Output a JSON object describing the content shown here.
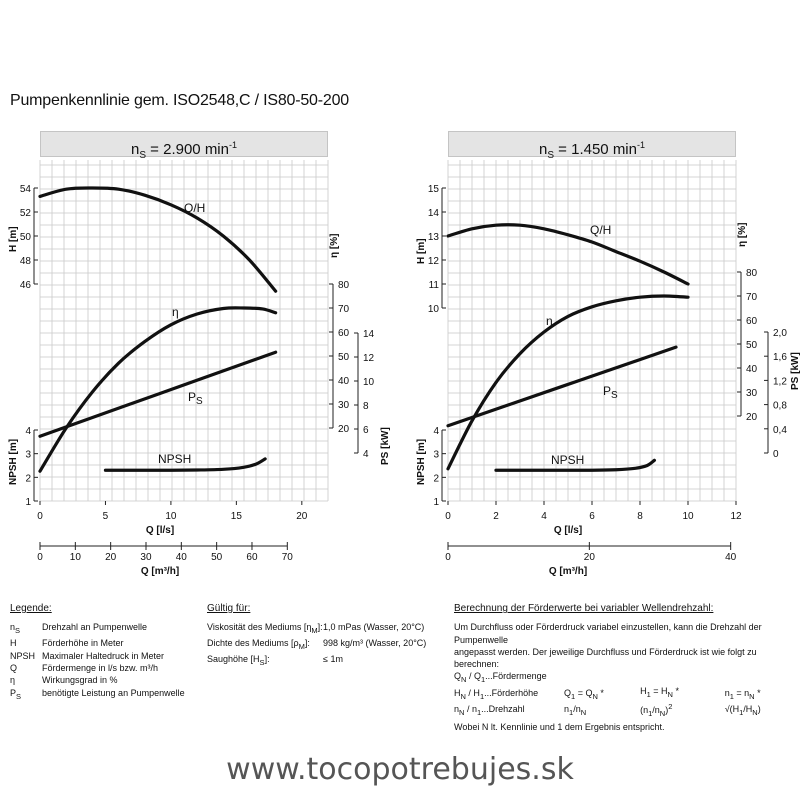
{
  "title": "Pumpenkennlinie gem. ISO2548,C / IS80-50-200",
  "chart_data": [
    {
      "type": "line",
      "panel_title": "n_S = 2.900 min⁻¹",
      "x_label": "Q [l/s]",
      "x_ticks": [
        0,
        5,
        10,
        15,
        20
      ],
      "x2_label": "Q [m³/h]",
      "x2_ticks": [
        0,
        10,
        20,
        30,
        40,
        50,
        60,
        70
      ],
      "axes": {
        "H": {
          "label": "H [m]",
          "ticks": [
            46,
            48,
            50,
            52,
            54
          ],
          "range": [
            46,
            54
          ]
        },
        "eta": {
          "label": "η [%]",
          "ticks": [
            20,
            30,
            40,
            50,
            60,
            70,
            80
          ],
          "range": [
            20,
            80
          ]
        },
        "PS": {
          "label": "PS [kW]",
          "ticks": [
            4,
            6,
            8,
            10,
            12,
            14
          ],
          "range": [
            4,
            14
          ]
        },
        "NPSH": {
          "label": "NPSH [m]",
          "ticks": [
            1,
            2,
            3,
            4
          ],
          "range": [
            1,
            4
          ]
        }
      },
      "series": [
        {
          "name": "Q/H",
          "axis": "H",
          "x": [
            0,
            2,
            4,
            6,
            8,
            10,
            12,
            14,
            16,
            18
          ],
          "y": [
            53.3,
            53.9,
            54.0,
            53.9,
            53.4,
            52.6,
            51.5,
            50.0,
            48.0,
            45.4
          ]
        },
        {
          "name": "η",
          "axis": "eta",
          "x": [
            0,
            2,
            4,
            6,
            8,
            10,
            12,
            14,
            15.6,
            17,
            18
          ],
          "y": [
            2,
            20,
            35,
            47,
            56,
            63,
            67.5,
            69.8,
            70,
            69.6,
            68
          ]
        },
        {
          "name": "PS",
          "axis": "PS",
          "x": [
            0,
            18
          ],
          "y": [
            5.4,
            12.4
          ]
        },
        {
          "name": "NPSH",
          "axis": "NPSH",
          "x": [
            5,
            8,
            10,
            12,
            14,
            15.5,
            16.5,
            17.2
          ],
          "y": [
            2.3,
            2.3,
            2.3,
            2.31,
            2.34,
            2.42,
            2.56,
            2.78
          ]
        }
      ],
      "curve_labels": {
        "QH": "Q/H",
        "eta": "η",
        "PS": "P",
        "PS_sub": "S",
        "NPSH": "NPSH"
      }
    },
    {
      "type": "line",
      "panel_title": "n_S = 1.450 min⁻¹",
      "x_label": "Q [l/s]",
      "x_ticks": [
        0,
        2,
        4,
        6,
        8,
        10,
        12
      ],
      "x2_label": "Q [m³/h]",
      "x2_ticks": [
        0,
        20,
        40
      ],
      "axes": {
        "H": {
          "label": "H [m]",
          "ticks": [
            10,
            11,
            12,
            13,
            14,
            15
          ],
          "range": [
            10,
            15
          ]
        },
        "eta": {
          "label": "η [%]",
          "ticks": [
            20,
            30,
            40,
            50,
            60,
            70,
            80
          ],
          "range": [
            20,
            80
          ]
        },
        "PS": {
          "label": "PS [kW]",
          "ticks": [
            0,
            0.4,
            0.8,
            1.2,
            1.6,
            2.0
          ],
          "tick_labels": [
            "0",
            "0,4",
            "0,8",
            "1,2",
            "1,6",
            "2,0"
          ],
          "range": [
            0,
            2
          ]
        },
        "NPSH": {
          "label": "NPSH [m]",
          "ticks": [
            1,
            2,
            3,
            4
          ],
          "range": [
            1,
            4
          ]
        }
      },
      "series": [
        {
          "name": "Q/H",
          "axis": "H",
          "x": [
            0,
            1,
            2,
            3,
            4,
            5,
            6,
            7,
            8,
            9,
            10
          ],
          "y": [
            13.0,
            13.3,
            13.45,
            13.45,
            13.3,
            13.05,
            12.75,
            12.35,
            11.95,
            11.5,
            11.0
          ]
        },
        {
          "name": "η",
          "axis": "eta",
          "x": [
            0,
            1,
            2,
            3,
            4,
            5,
            6,
            7,
            8,
            9,
            10
          ],
          "y": [
            -2,
            18,
            34,
            46,
            55,
            61.5,
            65.5,
            68,
            69.5,
            70,
            69.5
          ]
        },
        {
          "name": "PS",
          "axis": "PS",
          "x": [
            0,
            9.5
          ],
          "y": [
            0.45,
            1.75
          ]
        },
        {
          "name": "NPSH",
          "axis": "NPSH",
          "x": [
            2,
            4,
            6,
            7,
            7.8,
            8.3,
            8.6
          ],
          "y": [
            2.3,
            2.3,
            2.3,
            2.32,
            2.38,
            2.5,
            2.72
          ]
        }
      ],
      "curve_labels": {
        "QH": "Q/H",
        "eta": "η",
        "PS": "P",
        "PS_sub": "S",
        "NPSH": "NPSH"
      }
    }
  ],
  "legend": {
    "heading": "Legende:",
    "items": [
      {
        "sym": "nS",
        "text": "Drehzahl an Pumpenwelle"
      },
      {
        "sym": "H",
        "text": "Förderhöhe in Meter"
      },
      {
        "sym": "NPSH",
        "text": "Maximaler Haltedruck in Meter"
      },
      {
        "sym": "Q",
        "text": "Fördermenge in l/s bzw. m³/h"
      },
      {
        "sym": "η",
        "text": "Wirkungsgrad in %"
      },
      {
        "sym": "PS",
        "text": "benötigte Leistung an Pumpenwelle"
      }
    ]
  },
  "validity": {
    "heading": "Gültig für:",
    "items": [
      {
        "key": "Viskosität des Mediums [ηM]:",
        "value": "1,0 mPas (Wasser, 20°C)"
      },
      {
        "key": "Dichte des Mediums [ρM]:",
        "value": "998 kg/m³ (Wasser, 20°C)"
      },
      {
        "key": "Saughöhe [HS]:",
        "value": "≤ 1m"
      }
    ]
  },
  "calc": {
    "heading": "Berechnung der Förderwerte bei variabler Wellendrehzahl:",
    "lines": [
      "Um Durchfluss oder Förderdruck variabel einzustellen, kann die Drehzahl der Pumpenwelle",
      "angepasst werden. Der jeweilige Durchfluss und Förderdruck ist wie folgt zu berechnen:",
      "QN / Q1...Fördermenge",
      "HN / H1...Förderhöhe",
      "nN / n1...Drehzahl",
      "Wobei N lt. Kennlinie und 1 dem Ergebnis entspricht."
    ],
    "formulas": [
      "Q1 = QN * n1/nN",
      "H1 = HN * (n1/nN)²",
      "n1 = nN * √(H1/HN)"
    ]
  },
  "website": "www.tocopotrebujes.sk"
}
